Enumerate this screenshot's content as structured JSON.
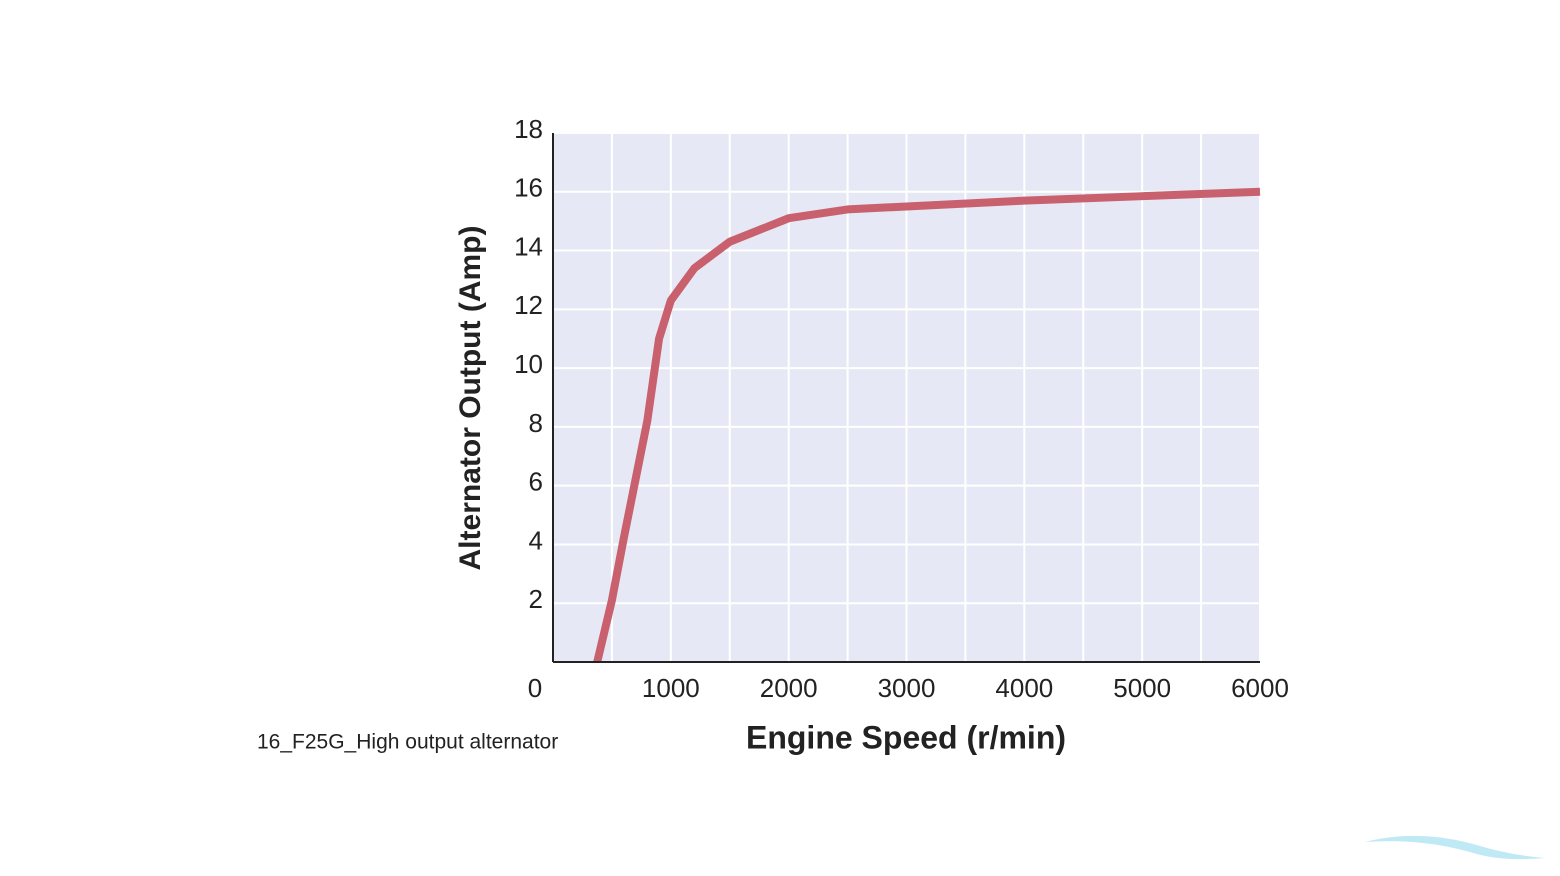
{
  "chart_data": {
    "type": "line",
    "x_label": "Engine Speed (r/min)",
    "y_label": "Alternator Output (Amp)",
    "caption": "16_F25G_High output alternator",
    "x": [
      375,
      500,
      600,
      700,
      800,
      900,
      1000,
      1200,
      1500,
      2000,
      2500,
      3000,
      4000,
      5000,
      6000
    ],
    "series": [
      {
        "name": "Alternator output",
        "color": "#c9606e",
        "values": [
          0,
          2.1,
          4.2,
          6.2,
          8.2,
          11.0,
          12.3,
          13.4,
          14.3,
          15.1,
          15.4,
          15.5,
          15.7,
          15.85,
          16.0
        ]
      }
    ],
    "xlim": [
      0,
      6000
    ],
    "xticks": [
      0,
      1000,
      2000,
      3000,
      4000,
      5000,
      6000
    ],
    "ylim": [
      0,
      18
    ],
    "yticks": [
      2,
      4,
      6,
      8,
      10,
      12,
      14,
      16,
      18
    ],
    "grid": true
  }
}
